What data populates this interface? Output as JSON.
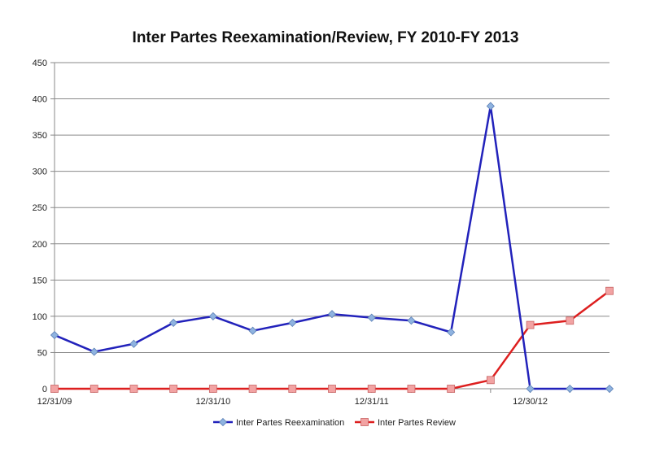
{
  "chart_data": {
    "type": "line",
    "title": "Inter Partes Reexamination/Review, FY 2010-FY 2013",
    "xlabel": "",
    "ylabel": "",
    "ylim": [
      0,
      450
    ],
    "yticks": [
      0,
      50,
      100,
      150,
      200,
      250,
      300,
      350,
      400,
      450
    ],
    "xlim": [
      "12/31/09",
      "3/31/13"
    ],
    "x": [
      "12/31/09",
      "3/31/10",
      "6/30/10",
      "9/30/10",
      "12/31/10",
      "3/31/11",
      "6/30/11",
      "9/30/11",
      "12/31/11",
      "3/31/12",
      "6/30/12",
      "9/30/12",
      "12/30/12",
      "3/31/13",
      "6/30/13"
    ],
    "xtick_labels": [
      "12/31/09",
      "12/31/10",
      "12/31/11",
      "12/30/12"
    ],
    "grid": "horizontal",
    "legend_position": "bottom",
    "series": [
      {
        "name": "Inter Partes Reexamination",
        "color": "#2222bb",
        "marker_color": "#8fb3e0",
        "marker": "diamond",
        "values": [
          74,
          51,
          62,
          91,
          100,
          80,
          91,
          103,
          98,
          94,
          78,
          390,
          0,
          0,
          0
        ]
      },
      {
        "name": "Inter Partes Review",
        "color": "#dd1f1f",
        "marker_color": "#f2a3a3",
        "marker": "square",
        "values": [
          0,
          0,
          0,
          0,
          0,
          0,
          0,
          0,
          0,
          0,
          0,
          12,
          88,
          94,
          135
        ]
      }
    ]
  }
}
